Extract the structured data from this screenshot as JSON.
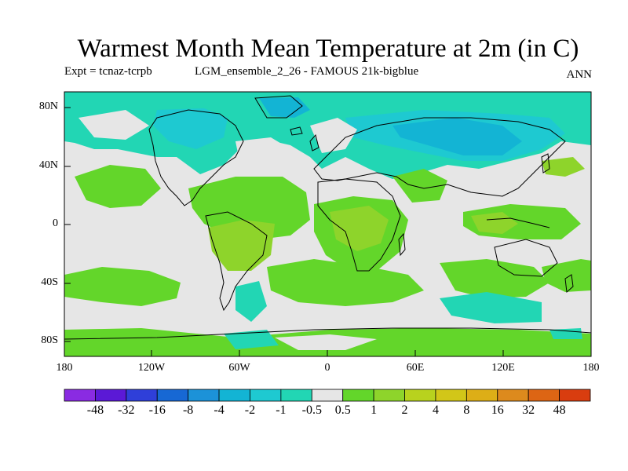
{
  "title": "Warmest Month Mean Temperature at 2m (in C)",
  "expt_label": "Expt = tcnaz-tcrpb",
  "run_label": "LGM_ensemble_2_26 - FAMOUS 21k-bigblue",
  "season_label": "ANN",
  "lat_labels": [
    "80N",
    "40N",
    "0",
    "40S",
    "80S"
  ],
  "lon_labels": [
    "180",
    "120W",
    "60W",
    "0",
    "60E",
    "120E",
    "180"
  ],
  "colorbar": {
    "labels": [
      "-48",
      "-32",
      "-16",
      "-8",
      "-4",
      "-2",
      "-1",
      "-0.5",
      "0.5",
      "1",
      "2",
      "4",
      "8",
      "16",
      "32",
      "48"
    ],
    "colors": [
      "#8a2be2",
      "#5b19d6",
      "#2f3fd9",
      "#1768d4",
      "#1c92d8",
      "#13b4d4",
      "#1ec9d1",
      "#22d6b4",
      "#e6e6e6",
      "#63d62a",
      "#8ed42b",
      "#b8d21e",
      "#d2c618",
      "#ddae17",
      "#dd8a1d",
      "#dd6514",
      "#d93d0f"
    ]
  },
  "colors": {
    "background": "#e6e6e6",
    "light_blue": "#22d6b4",
    "cyan": "#1ec9d1",
    "mid_blue": "#13b4d4",
    "blue": "#1c92d8",
    "green": "#63d62a",
    "yellow_green": "#8ed42b"
  }
}
